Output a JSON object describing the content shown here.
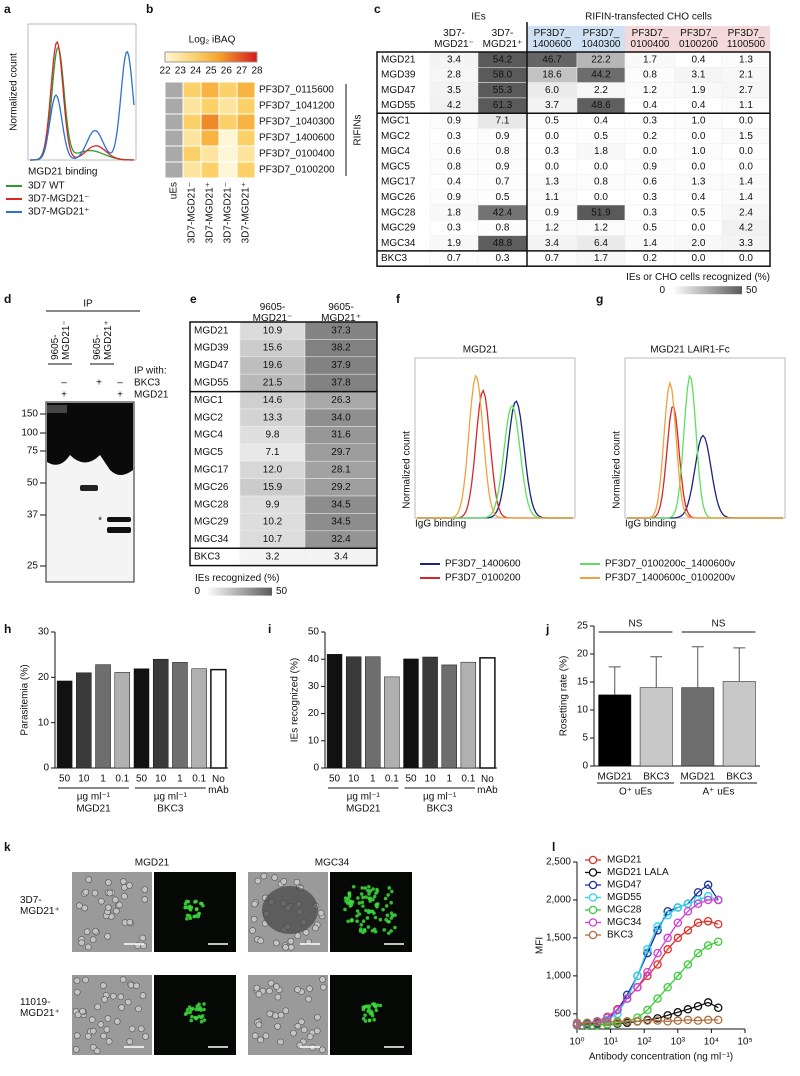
{
  "panel_labels": [
    "a",
    "b",
    "c",
    "d",
    "e",
    "f",
    "g",
    "h",
    "i",
    "j",
    "k",
    "l"
  ],
  "panel_a": {
    "y_label": "Normalized count",
    "x_label": "MGD21 binding",
    "legend": [
      {
        "name": "3D7 WT",
        "color": "#2a9d2a"
      },
      {
        "name": "3D7-MGD21⁻",
        "color": "#d8262a"
      },
      {
        "name": "3D7-MGD21⁺",
        "color": "#2f6fd0"
      }
    ]
  },
  "panel_b": {
    "scale_title": "Log₂ iBAQ",
    "scale": [
      22,
      28
    ],
    "scale_ticks": [
      22,
      23,
      24,
      25,
      26,
      27,
      28
    ],
    "rows": [
      "PF3D7_0115600",
      "PF3D7_1041200",
      "PF3D7_1040300",
      "PF3D7_1400600",
      "PF3D7_0100400",
      "PF3D7_0100200"
    ],
    "row_colors": [
      "#000000",
      "#000000",
      "#e8a020",
      "#d83a20",
      "#000000",
      "#000000"
    ],
    "columns": [
      "uEs",
      "3D7-MGD21⁻",
      "3D7-MGD21⁺",
      "3D7-MGD21⁻",
      "3D7-MGD21⁺"
    ],
    "bracket_label": "RIFINs",
    "values": [
      [
        null,
        24,
        25,
        24,
        25
      ],
      [
        null,
        23,
        24,
        23,
        24
      ],
      [
        null,
        24,
        26,
        24,
        25
      ],
      [
        null,
        23,
        25,
        22,
        24
      ],
      [
        null,
        24,
        23,
        22,
        23
      ],
      [
        null,
        23,
        24,
        22,
        24
      ]
    ]
  },
  "panel_c": {
    "group_headers": [
      "IEs",
      "RIFIN-transfected CHO cells"
    ],
    "columns": [
      "3D7-\nMGD21⁻",
      "3D7-\nMGD21⁺",
      "PF3D7_\n1400600",
      "PF3D7_\n1040300",
      "PF3D7_\n0100400",
      "PF3D7_\n0100200",
      "PF3D7_\n1100500"
    ],
    "column_colors": [
      "#ffffff",
      "#ffffff",
      "#cfe0f3",
      "#cfe0f3",
      "#f3d9d9",
      "#f3d9d9",
      "#f3d9d9"
    ],
    "rows": [
      [
        "MGD21",
        "3.4",
        "54.2",
        "46.7",
        "22.2",
        "1.7",
        "0.4",
        "1.3"
      ],
      [
        "MGD39",
        "2.8",
        "58.0",
        "18.6",
        "44.2",
        "0.8",
        "3.1",
        "2.1"
      ],
      [
        "MGD47",
        "3.5",
        "55.3",
        "6.0",
        "2.2",
        "1.2",
        "1.9",
        "2.7"
      ],
      [
        "MGD55",
        "4.2",
        "61.3",
        "3.7",
        "48.6",
        "0.4",
        "0.4",
        "1.1"
      ],
      [
        "MGC1",
        "0.9",
        "7.1",
        "0.5",
        "0.4",
        "0.3",
        "1.0",
        "0.0"
      ],
      [
        "MGC2",
        "0.3",
        "0.9",
        "0.0",
        "0.5",
        "0.2",
        "0.0",
        "1.5"
      ],
      [
        "MGC4",
        "0.6",
        "0.8",
        "0.3",
        "1.8",
        "0.0",
        "1.0",
        "0.0"
      ],
      [
        "MGC5",
        "0.8",
        "0.9",
        "0.0",
        "0.0",
        "0.9",
        "0.0",
        "0.0"
      ],
      [
        "MGC17",
        "0.4",
        "0.7",
        "1.3",
        "0.8",
        "0.6",
        "1.3",
        "1.4"
      ],
      [
        "MGC26",
        "0.9",
        "0.5",
        "1.1",
        "0.0",
        "0.3",
        "0.4",
        "1.4"
      ],
      [
        "MGC28",
        "1.8",
        "42.4",
        "0.9",
        "51.9",
        "0.3",
        "0.5",
        "2.4"
      ],
      [
        "MGC29",
        "0.3",
        "0.8",
        "1.2",
        "1.2",
        "0.5",
        "0.0",
        "4.2"
      ],
      [
        "MGC34",
        "1.9",
        "48.8",
        "3.4",
        "6.4",
        "1.4",
        "2.0",
        "3.3"
      ],
      [
        "BKC3",
        "0.7",
        "0.3",
        "0.7",
        "1.7",
        "0.2",
        "0.0",
        "0.0"
      ]
    ],
    "scale_title": "IEs or CHO cells recognized (%)",
    "scale": [
      0,
      50
    ]
  },
  "panel_d": {
    "title": "IP",
    "columns": [
      "9605-\nMGD21⁻",
      "9605-\nMGD21⁺"
    ],
    "ip_with": "IP with:",
    "row_labels": [
      "BKC3",
      "MGD21"
    ],
    "lane_signs": [
      [
        "–",
        "+"
      ],
      [
        "+"
      ],
      [
        "–",
        "+"
      ]
    ],
    "markers": [
      150,
      100,
      75,
      50,
      37,
      25
    ],
    "asterisk": "*"
  },
  "panel_e": {
    "columns": [
      "9605-\nMGD21⁻",
      "9605-\nMGD21⁺"
    ],
    "rows": [
      [
        "MGD21",
        "10.9",
        "37.3"
      ],
      [
        "MGD39",
        "15.6",
        "38.2"
      ],
      [
        "MGD47",
        "19.6",
        "37.9"
      ],
      [
        "MGD55",
        "21.5",
        "37.8"
      ],
      [
        "MGC1",
        "14.6",
        "26.3"
      ],
      [
        "MGC2",
        "13.3",
        "34.0"
      ],
      [
        "MGC4",
        "9.8",
        "31.6"
      ],
      [
        "MGC5",
        "7.1",
        "29.7"
      ],
      [
        "MGC17",
        "12.0",
        "28.1"
      ],
      [
        "MGC26",
        "15.9",
        "29.2"
      ],
      [
        "MGC28",
        "9.9",
        "34.5"
      ],
      [
        "MGC29",
        "10.2",
        "34.5"
      ],
      [
        "MGC34",
        "10.7",
        "32.4"
      ],
      [
        "BKC3",
        "3.2",
        "3.4"
      ]
    ],
    "scale_title": "IEs recognized (%)",
    "scale": [
      0,
      50
    ]
  },
  "panel_fg": {
    "titles": [
      "MGD21",
      "MGD21 LAIR1-Fc"
    ],
    "y_label": "Normalized count",
    "x_label": "IgG binding",
    "legend": [
      {
        "name": "PF3D7_1400600",
        "color": "#1a237e"
      },
      {
        "name": "PF3D7_0100200",
        "color": "#d8262a"
      },
      {
        "name": "PF3D7_0100200c_1400600v",
        "color": "#5ee05e"
      },
      {
        "name": "PF3D7_1400600c_0100200v",
        "color": "#f0a040"
      }
    ]
  },
  "chart_data": [
    {
      "type": "bar",
      "y_label": "Parasitemia (%)",
      "categories": [
        "50",
        "10",
        "1",
        "0.1",
        "50",
        "10",
        "1",
        "0.1",
        "No\nmAb"
      ],
      "values": [
        19.2,
        21.0,
        22.8,
        21.1,
        21.9,
        24.0,
        23.3,
        21.9,
        21.7
      ],
      "colors": [
        "#111111",
        "#3a3a3a",
        "#6e6e6e",
        "#b0b0b0",
        "#111111",
        "#3a3a3a",
        "#6e6e6e",
        "#b0b0b0",
        "#ffffff"
      ],
      "groups": [
        {
          "unit": "µg ml⁻¹",
          "name": "MGD21"
        },
        {
          "unit": "µg ml⁻¹",
          "name": "BKC3"
        }
      ],
      "ylim": [
        0,
        30
      ],
      "yticks": [
        0,
        10,
        20,
        30
      ]
    },
    {
      "type": "bar",
      "y_label": "IEs recognized (%)",
      "categories": [
        "50",
        "10",
        "1",
        "0.1",
        "50",
        "10",
        "1",
        "0.1",
        "No\nmAb"
      ],
      "values": [
        41.8,
        40.9,
        40.9,
        33.5,
        40.1,
        40.8,
        37.9,
        38.9,
        40.5
      ],
      "colors": [
        "#111111",
        "#3a3a3a",
        "#6e6e6e",
        "#b0b0b0",
        "#111111",
        "#3a3a3a",
        "#6e6e6e",
        "#b0b0b0",
        "#ffffff"
      ],
      "groups": [
        {
          "unit": "µg ml⁻¹",
          "name": "MGD21"
        },
        {
          "unit": "µg ml⁻¹",
          "name": "BKC3"
        }
      ],
      "ylim": [
        0,
        50
      ],
      "yticks": [
        0,
        10,
        20,
        30,
        40,
        50
      ]
    },
    {
      "type": "bar",
      "y_label": "Rosetting rate (%)",
      "categories": [
        "MGD21",
        "BKC3",
        "MGD21",
        "BKC3"
      ],
      "values": [
        12.7,
        14.0,
        14.0,
        15.1
      ],
      "errors": [
        5.0,
        5.5,
        7.3,
        6.0
      ],
      "colors": [
        "#000000",
        "#c8c8c8",
        "#6e6e6e",
        "#c8c8c8"
      ],
      "groups": [
        {
          "name": "O⁺ uEs"
        },
        {
          "name": "A⁺ uEs"
        }
      ],
      "annotations": [
        "NS",
        "NS"
      ],
      "ylim": [
        0,
        25
      ],
      "yticks": [
        0,
        5,
        10,
        15,
        20,
        25
      ]
    },
    {
      "type": "line",
      "y_label": "MFI",
      "x_label": "Antibody concentration (ng ml⁻¹)",
      "xscale": "log",
      "x": [
        1,
        2,
        4,
        8,
        16,
        31,
        63,
        125,
        250,
        500,
        1000,
        2000,
        4000,
        8000,
        16000
      ],
      "series": [
        {
          "name": "MGD21",
          "color": "#e0302a",
          "values": [
            350,
            370,
            400,
            460,
            560,
            700,
            850,
            1000,
            1150,
            1350,
            1500,
            1600,
            1700,
            1720,
            1680
          ]
        },
        {
          "name": "MGD21 LALA",
          "color": "#111111",
          "values": [
            350,
            350,
            360,
            360,
            370,
            380,
            400,
            420,
            440,
            480,
            520,
            560,
            600,
            650,
            580
          ]
        },
        {
          "name": "MGD47",
          "color": "#1c2fa0",
          "values": [
            350,
            360,
            380,
            420,
            550,
            750,
            1000,
            1300,
            1600,
            1850,
            1900,
            1950,
            2100,
            2200,
            2000
          ]
        },
        {
          "name": "MGD55",
          "color": "#30d0e8",
          "values": [
            380,
            380,
            400,
            420,
            500,
            700,
            1000,
            1350,
            1650,
            1800,
            1900,
            1950,
            2000,
            2050,
            2000
          ]
        },
        {
          "name": "MGC28",
          "color": "#3ccc3c",
          "values": [
            350,
            350,
            350,
            360,
            380,
            400,
            450,
            550,
            700,
            850,
            1000,
            1150,
            1300,
            1400,
            1450
          ]
        },
        {
          "name": "MGC34",
          "color": "#d040d0",
          "values": [
            360,
            380,
            400,
            450,
            550,
            700,
            850,
            1050,
            1300,
            1500,
            1700,
            1850,
            1950,
            2000,
            2000
          ]
        },
        {
          "name": "BKC3",
          "color": "#b07040",
          "values": [
            380,
            380,
            390,
            390,
            400,
            400,
            400,
            410,
            410,
            400,
            410,
            420,
            410,
            420,
            420
          ]
        }
      ],
      "xlim": [
        1,
        100000
      ],
      "xticks": [
        {
          "value": 1,
          "label": "10⁰"
        },
        {
          "value": 10,
          "label": "10¹"
        },
        {
          "value": 100,
          "label": "10²"
        },
        {
          "value": 1000,
          "label": "10³"
        },
        {
          "value": 10000,
          "label": "10⁴"
        },
        {
          "value": 100000,
          "label": "10⁵"
        }
      ],
      "ylim": [
        300,
        2500
      ],
      "yticks": [
        500,
        {
          "value": 1000,
          "label": "1,000"
        },
        {
          "value": 1500,
          "label": "1,500"
        },
        {
          "value": 2000,
          "label": "2,000"
        },
        {
          "value": 2500,
          "label": "2,500"
        }
      ]
    }
  ],
  "panel_k": {
    "columns": [
      "MGD21",
      "MGC34"
    ],
    "rows": [
      "3D7-\nMGD21⁺",
      "11019-\nMGD21⁺"
    ]
  }
}
